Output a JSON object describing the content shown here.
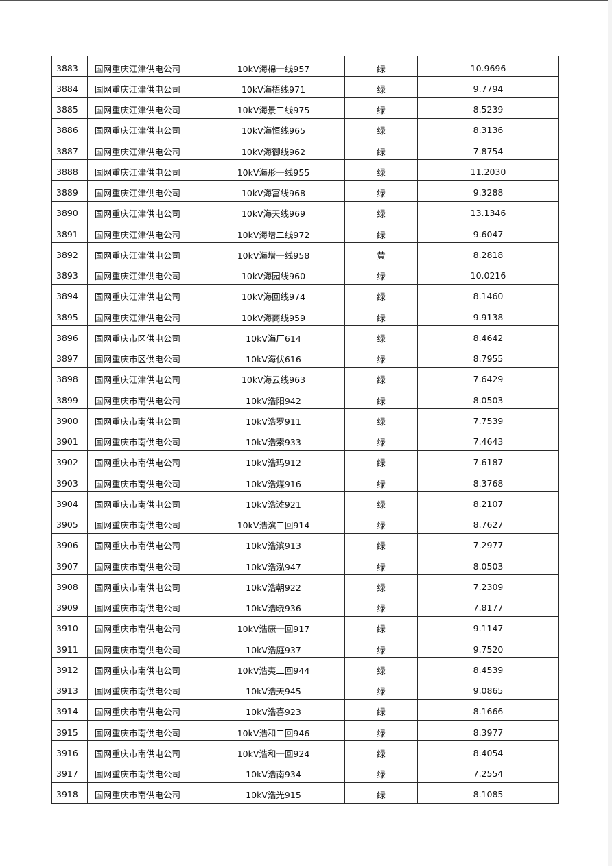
{
  "table": {
    "rows": [
      [
        "3883",
        "国网重庆江津供电公司",
        "10kV海棉一线957",
        "绿",
        "10.9696"
      ],
      [
        "3884",
        "国网重庆江津供电公司",
        "10kV海梧线971",
        "绿",
        "9.7794"
      ],
      [
        "3885",
        "国网重庆江津供电公司",
        "10kV海景二线975",
        "绿",
        "8.5239"
      ],
      [
        "3886",
        "国网重庆江津供电公司",
        "10kV海恒线965",
        "绿",
        "8.3136"
      ],
      [
        "3887",
        "国网重庆江津供电公司",
        "10kV海御线962",
        "绿",
        "7.8754"
      ],
      [
        "3888",
        "国网重庆江津供电公司",
        "10kV海形一线955",
        "绿",
        "11.2030"
      ],
      [
        "3889",
        "国网重庆江津供电公司",
        "10kV海富线968",
        "绿",
        "9.3288"
      ],
      [
        "3890",
        "国网重庆江津供电公司",
        "10kV海天线969",
        "绿",
        "13.1346"
      ],
      [
        "3891",
        "国网重庆江津供电公司",
        "10kV海增二线972",
        "绿",
        "9.6047"
      ],
      [
        "3892",
        "国网重庆江津供电公司",
        "10kV海增一线958",
        "黄",
        "8.2818"
      ],
      [
        "3893",
        "国网重庆江津供电公司",
        "10kV海园线960",
        "绿",
        "10.0216"
      ],
      [
        "3894",
        "国网重庆江津供电公司",
        "10kV海回线974",
        "绿",
        "8.1460"
      ],
      [
        "3895",
        "国网重庆江津供电公司",
        "10kV海商线959",
        "绿",
        "9.9138"
      ],
      [
        "3896",
        "国网重庆市区供电公司",
        "10kV海厂614",
        "绿",
        "8.4642"
      ],
      [
        "3897",
        "国网重庆市区供电公司",
        "10kV海伏616",
        "绿",
        "8.7955"
      ],
      [
        "3898",
        "国网重庆江津供电公司",
        "10kV海云线963",
        "绿",
        "7.6429"
      ],
      [
        "3899",
        "国网重庆市南供电公司",
        "10kV浩阳942",
        "绿",
        "8.0503"
      ],
      [
        "3900",
        "国网重庆市南供电公司",
        "10kV浩罗911",
        "绿",
        "7.7539"
      ],
      [
        "3901",
        "国网重庆市南供电公司",
        "10kV浩索933",
        "绿",
        "7.4643"
      ],
      [
        "3902",
        "国网重庆市南供电公司",
        "10kV浩玛912",
        "绿",
        "7.6187"
      ],
      [
        "3903",
        "国网重庆市南供电公司",
        "10kV浩煤916",
        "绿",
        "8.3768"
      ],
      [
        "3904",
        "国网重庆市南供电公司",
        "10kV浩滩921",
        "绿",
        "8.2107"
      ],
      [
        "3905",
        "国网重庆市南供电公司",
        "10kV浩滨二回914",
        "绿",
        "8.7627"
      ],
      [
        "3906",
        "国网重庆市南供电公司",
        "10kV浩滨913",
        "绿",
        "7.2977"
      ],
      [
        "3907",
        "国网重庆市南供电公司",
        "10kV浩泓947",
        "绿",
        "8.0503"
      ],
      [
        "3908",
        "国网重庆市南供电公司",
        "10kV浩朝922",
        "绿",
        "7.2309"
      ],
      [
        "3909",
        "国网重庆市南供电公司",
        "10kV浩晓936",
        "绿",
        "7.8177"
      ],
      [
        "3910",
        "国网重庆市南供电公司",
        "10kV浩康一回917",
        "绿",
        "9.1147"
      ],
      [
        "3911",
        "国网重庆市南供电公司",
        "10kV浩庭937",
        "绿",
        "9.7520"
      ],
      [
        "3912",
        "国网重庆市南供电公司",
        "10kV浩夷二回944",
        "绿",
        "8.4539"
      ],
      [
        "3913",
        "国网重庆市南供电公司",
        "10kV浩天945",
        "绿",
        "9.0865"
      ],
      [
        "3914",
        "国网重庆市南供电公司",
        "10kV浩喜923",
        "绿",
        "8.1666"
      ],
      [
        "3915",
        "国网重庆市南供电公司",
        "10kV浩和二回946",
        "绿",
        "8.3977"
      ],
      [
        "3916",
        "国网重庆市南供电公司",
        "10kV浩和一回924",
        "绿",
        "8.4054"
      ],
      [
        "3917",
        "国网重庆市南供电公司",
        "10kV浩南934",
        "绿",
        "7.2554"
      ],
      [
        "3918",
        "国网重庆市南供电公司",
        "10kV浩光915",
        "绿",
        "8.1085"
      ]
    ]
  }
}
